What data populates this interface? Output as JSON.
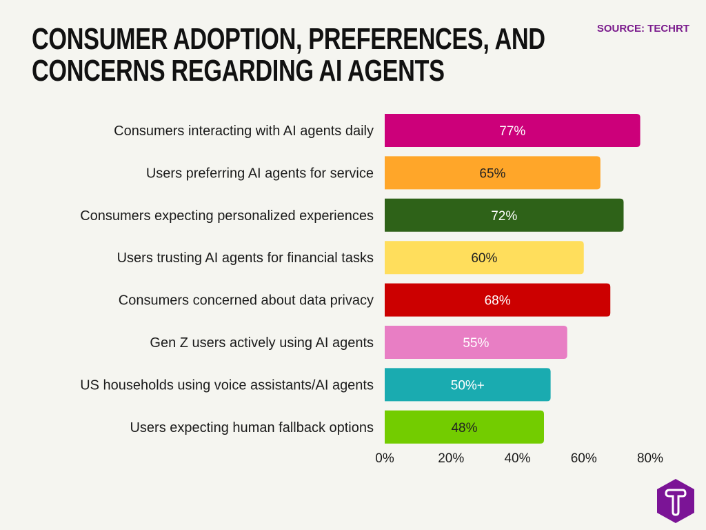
{
  "title_lines": [
    "CONSUMER ADOPTION, PREFERENCES, AND",
    "CONCERNS REGARDING AI AGENTS"
  ],
  "source": "SOURCE: TECHRT",
  "logo_text": "T",
  "chart_data": {
    "type": "bar",
    "orientation": "horizontal",
    "title": "CONSUMER ADOPTION, PREFERENCES, AND CONCERNS REGARDING AI AGENTS",
    "categories": [
      "Consumers interacting with AI agents daily",
      "Users preferring AI agents for service",
      "Consumers expecting personalized experiences",
      "Users trusting AI agents for financial tasks",
      "Consumers concerned about data privacy",
      "Gen Z users actively using AI agents",
      "US households using voice assistants/AI agents",
      "Users expecting human fallback options"
    ],
    "values": [
      77,
      65,
      72,
      60,
      68,
      55,
      50,
      48
    ],
    "data_labels": [
      "77%",
      "65%",
      "72%",
      "60%",
      "68%",
      "55%",
      "50%+",
      "48%"
    ],
    "colors": [
      "#cc007a",
      "#ffa629",
      "#2e6218",
      "#ffde5c",
      "#cc0000",
      "#e87ec4",
      "#1aabb0",
      "#73cc00"
    ],
    "label_colors": [
      "#ffffff",
      "#222222",
      "#ffffff",
      "#222222",
      "#ffffff",
      "#ffffff",
      "#ffffff",
      "#222222"
    ],
    "xlim": [
      0,
      80
    ],
    "xticks": [
      "0%",
      "20%",
      "40%",
      "60%",
      "80%"
    ],
    "grid": false,
    "xlabel": "",
    "ylabel": ""
  }
}
